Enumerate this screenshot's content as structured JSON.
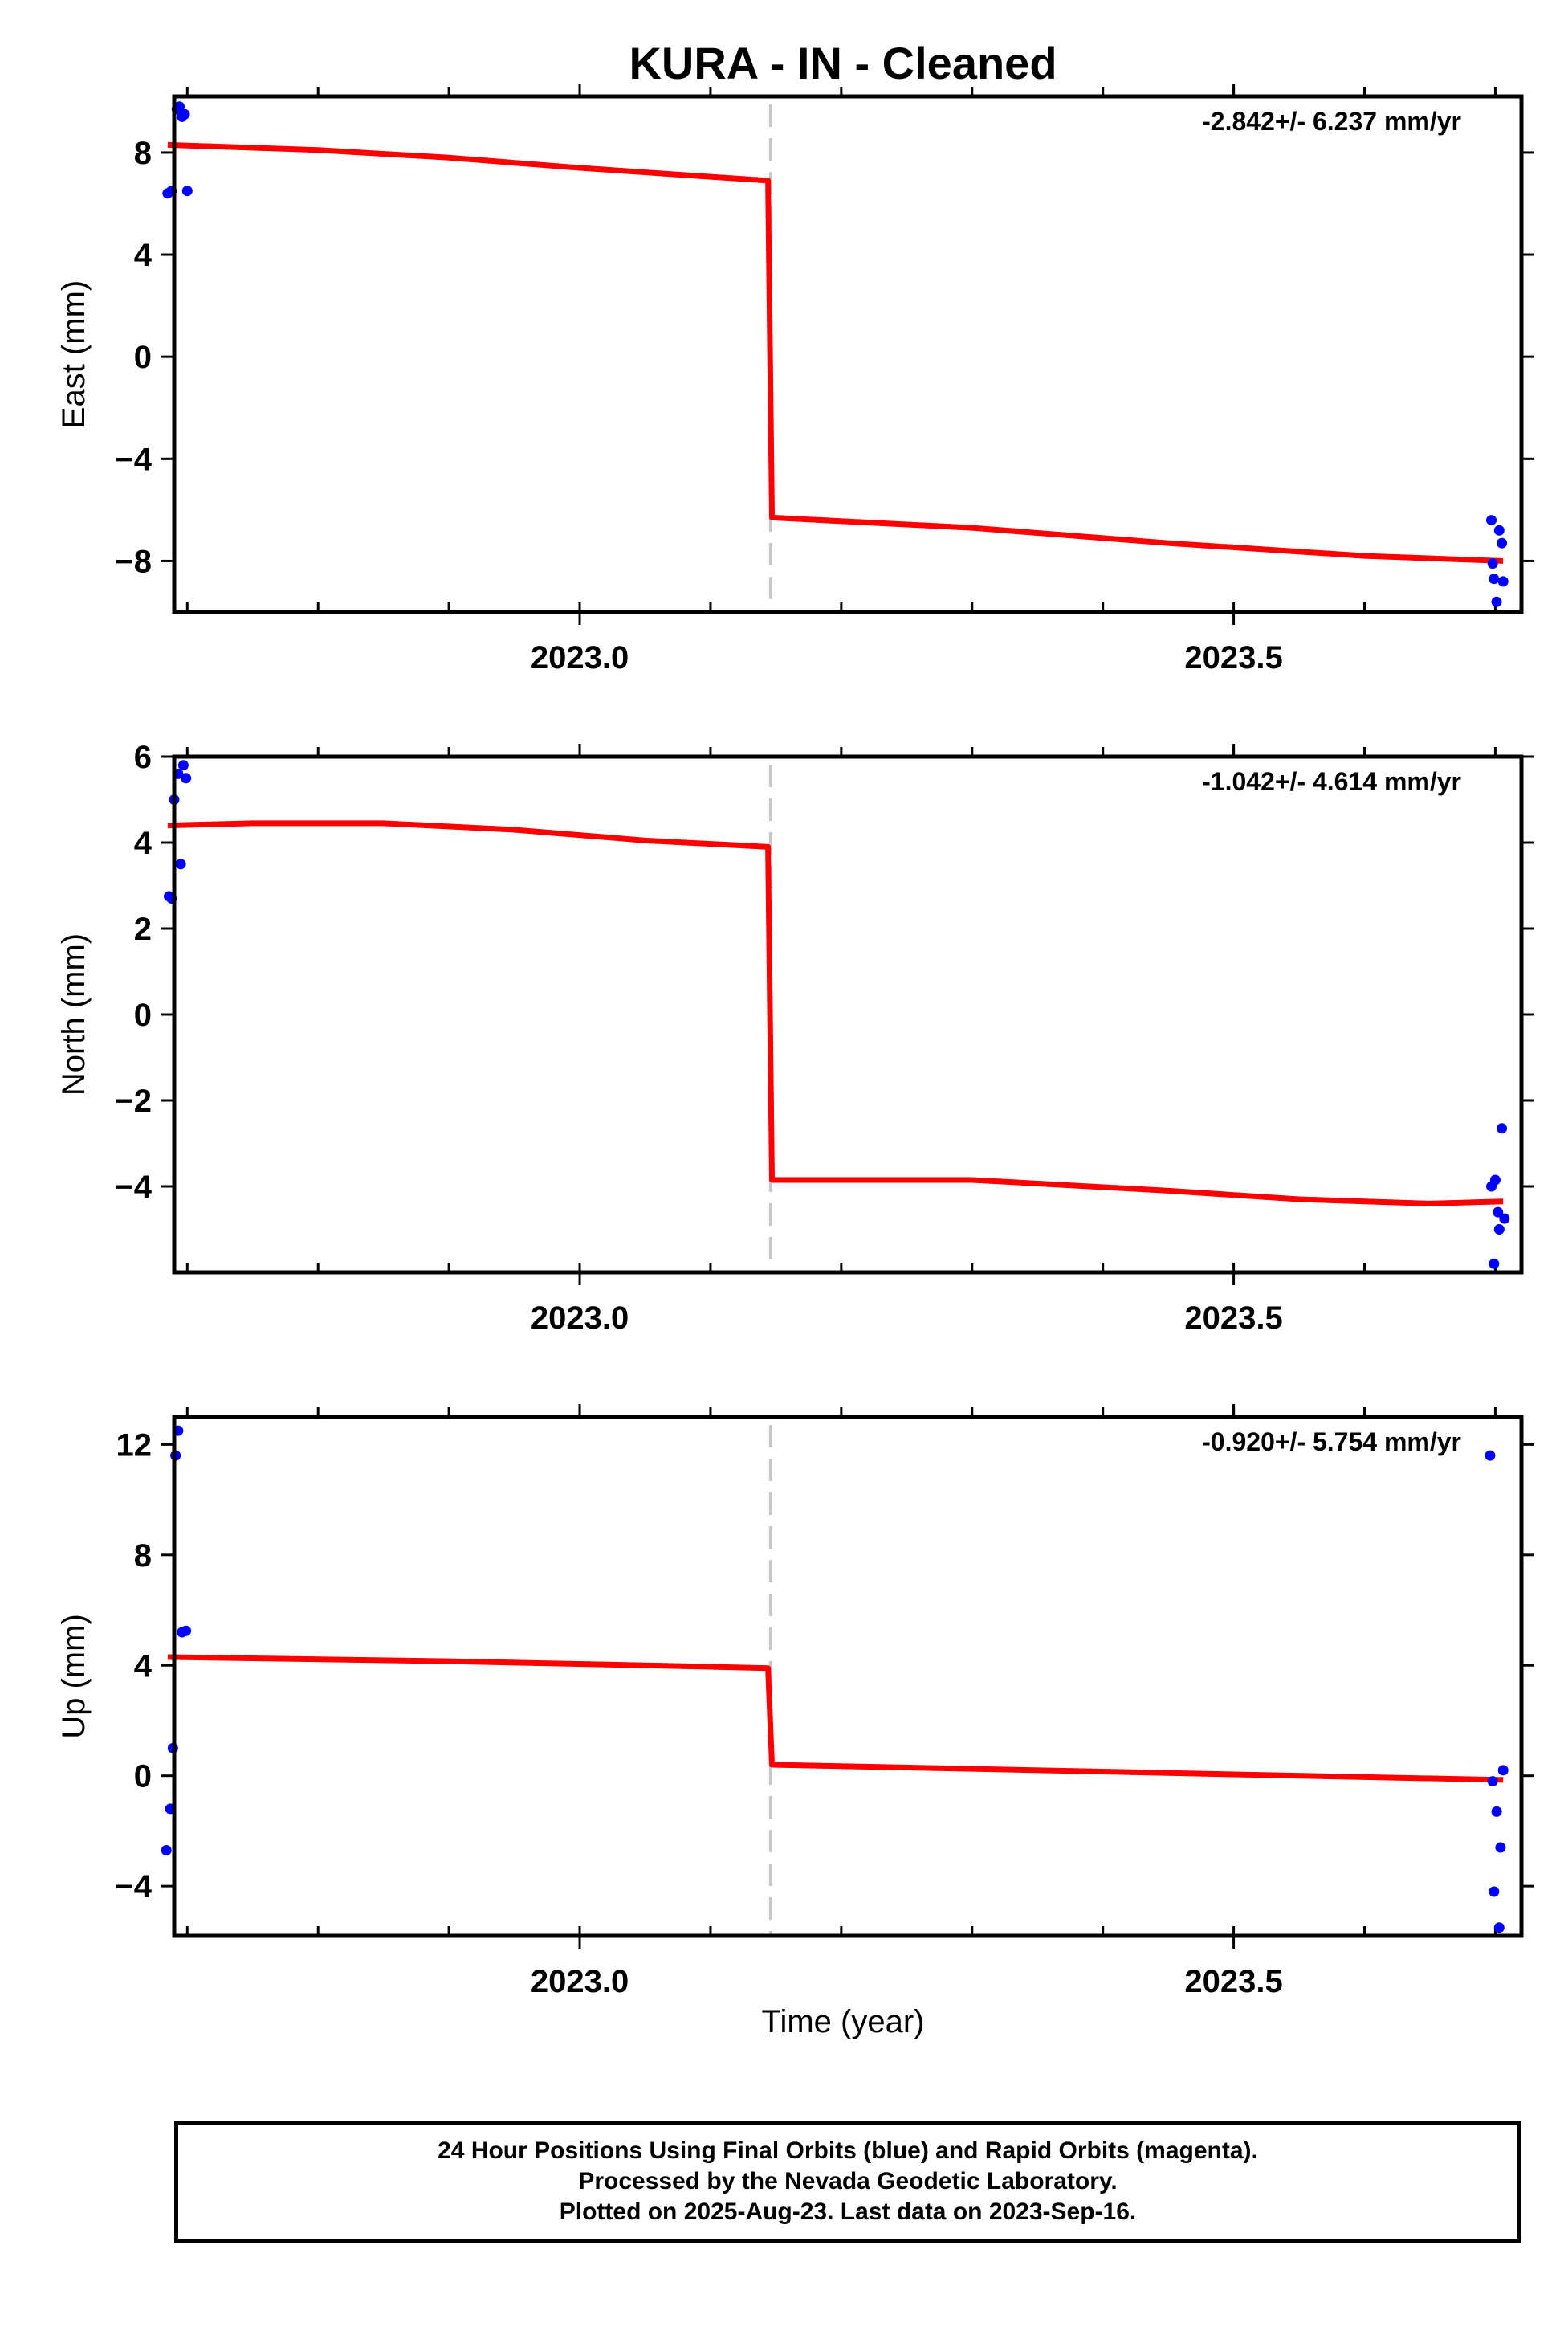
{
  "title": "KURA  - IN - Cleaned",
  "colors": {
    "data": "#0000ff",
    "fit": "#ff0000",
    "break": "#c8c8c8",
    "axis": "#000000"
  },
  "xlabel": "Time (year)",
  "chart_data": [
    {
      "type": "scatter",
      "ylabel": "East (mm)",
      "xlim": [
        2022.69,
        2023.72
      ],
      "ylim": [
        -10.0,
        10.2
      ],
      "x_tick_labels": [
        "2023.0",
        "2023.5"
      ],
      "y_ticks": [
        8,
        4,
        0,
        -4,
        -8
      ],
      "y_tick_labels": [
        "8",
        "4",
        "0",
        "−4",
        "−8"
      ],
      "rate_label": "-2.842+/- 6.237 mm/yr",
      "break_x": 2023.146,
      "series": [
        {
          "points": [
            [
              2022.685,
              6.4
            ],
            [
              2022.688,
              6.5
            ],
            [
              2022.692,
              9.7
            ],
            [
              2022.694,
              9.8
            ],
            [
              2022.696,
              9.4
            ],
            [
              2022.698,
              9.5
            ],
            [
              2022.7,
              6.5
            ],
            [
              2023.697,
              -6.4
            ],
            [
              2023.698,
              -8.1
            ],
            [
              2023.699,
              -8.7
            ],
            [
              2023.701,
              -9.6
            ],
            [
              2023.703,
              -6.8
            ],
            [
              2023.705,
              -7.3
            ],
            [
              2023.706,
              -8.8
            ]
          ]
        },
        {
          "fit": [
            [
              2022.685,
              8.3
            ],
            [
              2022.8,
              8.1
            ],
            [
              2022.9,
              7.8
            ],
            [
              2023.0,
              7.4
            ],
            [
              2023.1,
              7.05
            ],
            [
              2023.144,
              6.9
            ],
            [
              2023.147,
              -6.3
            ],
            [
              2023.3,
              -6.7
            ],
            [
              2023.45,
              -7.3
            ],
            [
              2023.6,
              -7.8
            ],
            [
              2023.706,
              -8.0
            ]
          ]
        }
      ]
    },
    {
      "type": "scatter",
      "ylabel": "North (mm)",
      "xlim": [
        2022.69,
        2023.72
      ],
      "ylim": [
        -6.0,
        6.0
      ],
      "x_tick_labels": [
        "2023.0",
        "2023.5"
      ],
      "y_ticks": [
        6,
        4,
        2,
        0,
        -2,
        -4
      ],
      "y_tick_labels": [
        "6",
        "4",
        "2",
        "0",
        "−2",
        "−4"
      ],
      "rate_label": "-1.042+/- 4.614 mm/yr",
      "break_x": 2023.146,
      "series": [
        {
          "points": [
            [
              2022.686,
              2.75
            ],
            [
              2022.688,
              2.7
            ],
            [
              2022.69,
              5.0
            ],
            [
              2022.693,
              5.6
            ],
            [
              2022.695,
              3.5
            ],
            [
              2022.697,
              5.8
            ],
            [
              2022.699,
              5.5
            ],
            [
              2023.697,
              -4.0
            ],
            [
              2023.699,
              -5.8
            ],
            [
              2023.7,
              -3.85
            ],
            [
              2023.702,
              -4.6
            ],
            [
              2023.703,
              -5.0
            ],
            [
              2023.705,
              -2.65
            ],
            [
              2023.707,
              -4.75
            ]
          ]
        },
        {
          "fit": [
            [
              2022.685,
              4.4
            ],
            [
              2022.75,
              4.45
            ],
            [
              2022.85,
              4.45
            ],
            [
              2022.95,
              4.3
            ],
            [
              2023.05,
              4.05
            ],
            [
              2023.144,
              3.9
            ],
            [
              2023.147,
              -3.85
            ],
            [
              2023.3,
              -3.85
            ],
            [
              2023.45,
              -4.1
            ],
            [
              2023.55,
              -4.3
            ],
            [
              2023.65,
              -4.4
            ],
            [
              2023.706,
              -4.35
            ]
          ]
        }
      ]
    },
    {
      "type": "scatter",
      "ylabel": "Up (mm)",
      "xlim": [
        2022.69,
        2023.72
      ],
      "ylim": [
        -5.8,
        13.0
      ],
      "x_tick_labels": [
        "2023.0",
        "2023.5"
      ],
      "y_ticks": [
        12,
        8,
        4,
        0,
        -4
      ],
      "y_tick_labels": [
        "12",
        "8",
        "4",
        "0",
        "−4"
      ],
      "rate_label": "-0.920+/- 5.754 mm/yr",
      "break_x": 2023.146,
      "series": [
        {
          "points": [
            [
              2022.684,
              -2.7
            ],
            [
              2022.687,
              -1.2
            ],
            [
              2022.689,
              1.0
            ],
            [
              2022.691,
              11.6
            ],
            [
              2022.693,
              12.5
            ],
            [
              2022.696,
              5.2
            ],
            [
              2022.699,
              5.25
            ],
            [
              2023.696,
              11.6
            ],
            [
              2023.698,
              -0.2
            ],
            [
              2023.699,
              -4.2
            ],
            [
              2023.701,
              -1.3
            ],
            [
              2023.703,
              -5.5
            ],
            [
              2023.704,
              -2.6
            ],
            [
              2023.706,
              0.2
            ]
          ]
        },
        {
          "fit": [
            [
              2022.685,
              4.3
            ],
            [
              2022.9,
              4.15
            ],
            [
              2023.1,
              3.95
            ],
            [
              2023.144,
              3.9
            ],
            [
              2023.147,
              0.4
            ],
            [
              2023.3,
              0.25
            ],
            [
              2023.5,
              0.05
            ],
            [
              2023.706,
              -0.15
            ]
          ]
        }
      ]
    }
  ],
  "footer": {
    "line1": "24 Hour Positions Using Final Orbits (blue) and Rapid Orbits (magenta).",
    "line2": "Processed by the Nevada Geodetic Laboratory.",
    "line3": "Plotted on 2025-Aug-23. Last data on 2023-Sep-16."
  }
}
